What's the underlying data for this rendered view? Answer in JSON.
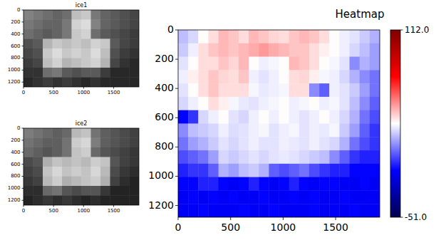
{
  "chart_data": [
    {
      "type": "heatmap",
      "title": "ice1",
      "color": "gray",
      "xlim": [
        0,
        1920
      ],
      "ylim": [
        1280,
        0
      ],
      "xticks": [
        0,
        500,
        1000,
        1500
      ],
      "yticks": [
        0,
        200,
        400,
        600,
        800,
        1000,
        1200
      ],
      "cells": [
        [
          130,
          120,
          110,
          100,
          110,
          190,
          200,
          120,
          100,
          90,
          80,
          70
        ],
        [
          120,
          110,
          100,
          100,
          120,
          210,
          220,
          130,
          100,
          90,
          80,
          70
        ],
        [
          110,
          100,
          90,
          100,
          120,
          200,
          210,
          110,
          90,
          80,
          70,
          60
        ],
        [
          80,
          90,
          180,
          200,
          190,
          200,
          190,
          210,
          200,
          90,
          70,
          60
        ],
        [
          70,
          80,
          200,
          220,
          200,
          210,
          200,
          220,
          190,
          80,
          60,
          50
        ],
        [
          60,
          70,
          190,
          210,
          180,
          190,
          200,
          210,
          180,
          70,
          50,
          40
        ],
        [
          50,
          50,
          110,
          120,
          90,
          80,
          90,
          90,
          60,
          40,
          40,
          40
        ],
        [
          40,
          50,
          60,
          50,
          60,
          50,
          40,
          50,
          40,
          40,
          40,
          40
        ]
      ]
    },
    {
      "type": "heatmap",
      "title": "ice2",
      "color": "gray",
      "xlim": [
        0,
        1920
      ],
      "ylim": [
        1280,
        0
      ],
      "xticks": [
        0,
        500,
        1000,
        1500
      ],
      "yticks": [
        0,
        200,
        400,
        600,
        800,
        1000,
        1200
      ],
      "cells": [
        [
          125,
          115,
          105,
          95,
          105,
          185,
          195,
          115,
          95,
          85,
          75,
          65
        ],
        [
          115,
          105,
          95,
          95,
          115,
          205,
          215,
          125,
          95,
          85,
          75,
          65
        ],
        [
          105,
          95,
          85,
          95,
          115,
          195,
          205,
          105,
          85,
          75,
          65,
          55
        ],
        [
          75,
          85,
          175,
          195,
          185,
          195,
          185,
          205,
          195,
          85,
          65,
          55
        ],
        [
          65,
          75,
          195,
          215,
          195,
          205,
          195,
          215,
          185,
          75,
          55,
          45
        ],
        [
          55,
          65,
          185,
          205,
          175,
          185,
          195,
          205,
          175,
          65,
          45,
          35
        ],
        [
          45,
          45,
          105,
          115,
          85,
          75,
          85,
          85,
          55,
          35,
          35,
          35
        ],
        [
          35,
          45,
          55,
          45,
          55,
          45,
          35,
          45,
          35,
          35,
          35,
          35
        ]
      ]
    },
    {
      "type": "heatmap",
      "title": "Heatmap",
      "color": "seismic",
      "xlim": [
        0,
        1920
      ],
      "ylim": [
        1280,
        0
      ],
      "xticks": [
        0,
        500,
        1000,
        1500
      ],
      "yticks": [
        0,
        200,
        400,
        600,
        800,
        1000,
        1200
      ],
      "cells": [
        [
          20,
          24,
          31,
          36,
          42,
          40,
          36,
          42,
          40,
          37,
          36,
          40,
          42,
          40,
          36,
          31,
          28,
          26,
          22,
          18
        ],
        [
          22,
          28,
          36,
          40,
          42,
          40,
          42,
          44,
          47,
          44,
          42,
          40,
          40,
          36,
          33,
          31,
          28,
          24,
          20,
          15
        ],
        [
          26,
          31,
          36,
          36,
          40,
          37,
          42,
          31,
          28,
          29,
          31,
          42,
          40,
          36,
          31,
          29,
          26,
          12,
          18,
          15
        ],
        [
          28,
          33,
          36,
          40,
          37,
          36,
          40,
          28,
          26,
          28,
          31,
          36,
          37,
          33,
          29,
          28,
          24,
          18,
          12,
          8
        ],
        [
          26,
          31,
          36,
          40,
          36,
          36,
          36,
          29,
          27,
          28,
          29,
          36,
          36,
          12,
          5,
          28,
          26,
          22,
          15,
          8
        ],
        [
          24,
          28,
          31,
          36,
          33,
          29,
          27,
          26,
          28,
          29,
          31,
          28,
          29,
          31,
          28,
          29,
          26,
          20,
          12,
          5
        ],
        [
          -10,
          -2,
          24,
          28,
          31,
          26,
          24,
          28,
          31,
          28,
          31,
          28,
          26,
          28,
          31,
          28,
          24,
          18,
          8,
          2
        ],
        [
          12,
          20,
          22,
          24,
          28,
          25,
          26,
          28,
          29,
          26,
          28,
          29,
          26,
          28,
          27,
          29,
          22,
          15,
          5,
          -2
        ],
        [
          8,
          15,
          18,
          22,
          26,
          24,
          26,
          28,
          26,
          26,
          28,
          27,
          26,
          28,
          26,
          24,
          18,
          8,
          2,
          -2
        ],
        [
          2,
          5,
          8,
          15,
          24,
          22,
          24,
          26,
          24,
          26,
          27,
          26,
          24,
          22,
          20,
          12,
          5,
          -2,
          -5,
          -5
        ],
        [
          -5,
          -2,
          -2,
          5,
          18,
          15,
          20,
          22,
          18,
          5,
          2,
          5,
          8,
          2,
          -2,
          -5,
          -5,
          -10,
          -10,
          -10
        ],
        [
          -10,
          -10,
          -5,
          -5,
          -10,
          -12,
          -10,
          -5,
          -10,
          -12,
          -10,
          -5,
          -10,
          -12,
          -10,
          -10,
          -12,
          -12,
          -10,
          -12
        ],
        [
          -12,
          -10,
          -12,
          -10,
          -12,
          -10,
          -12,
          -12,
          -10,
          -12,
          -12,
          -10,
          -12,
          -10,
          -12,
          -12,
          -10,
          -12,
          -12,
          -12
        ],
        [
          -12,
          -12,
          -10,
          -12,
          -12,
          -12,
          -10,
          -12,
          -12,
          -10,
          -12,
          -12,
          -12,
          -10,
          -12,
          -12,
          -12,
          -10,
          -12,
          -12
        ]
      ],
      "colorbar": {
        "range": [
          -51,
          112
        ],
        "ticks": [
          {
            "value": 112,
            "label": "112.0"
          },
          {
            "value": -51,
            "label": "-51.0"
          }
        ]
      }
    }
  ]
}
